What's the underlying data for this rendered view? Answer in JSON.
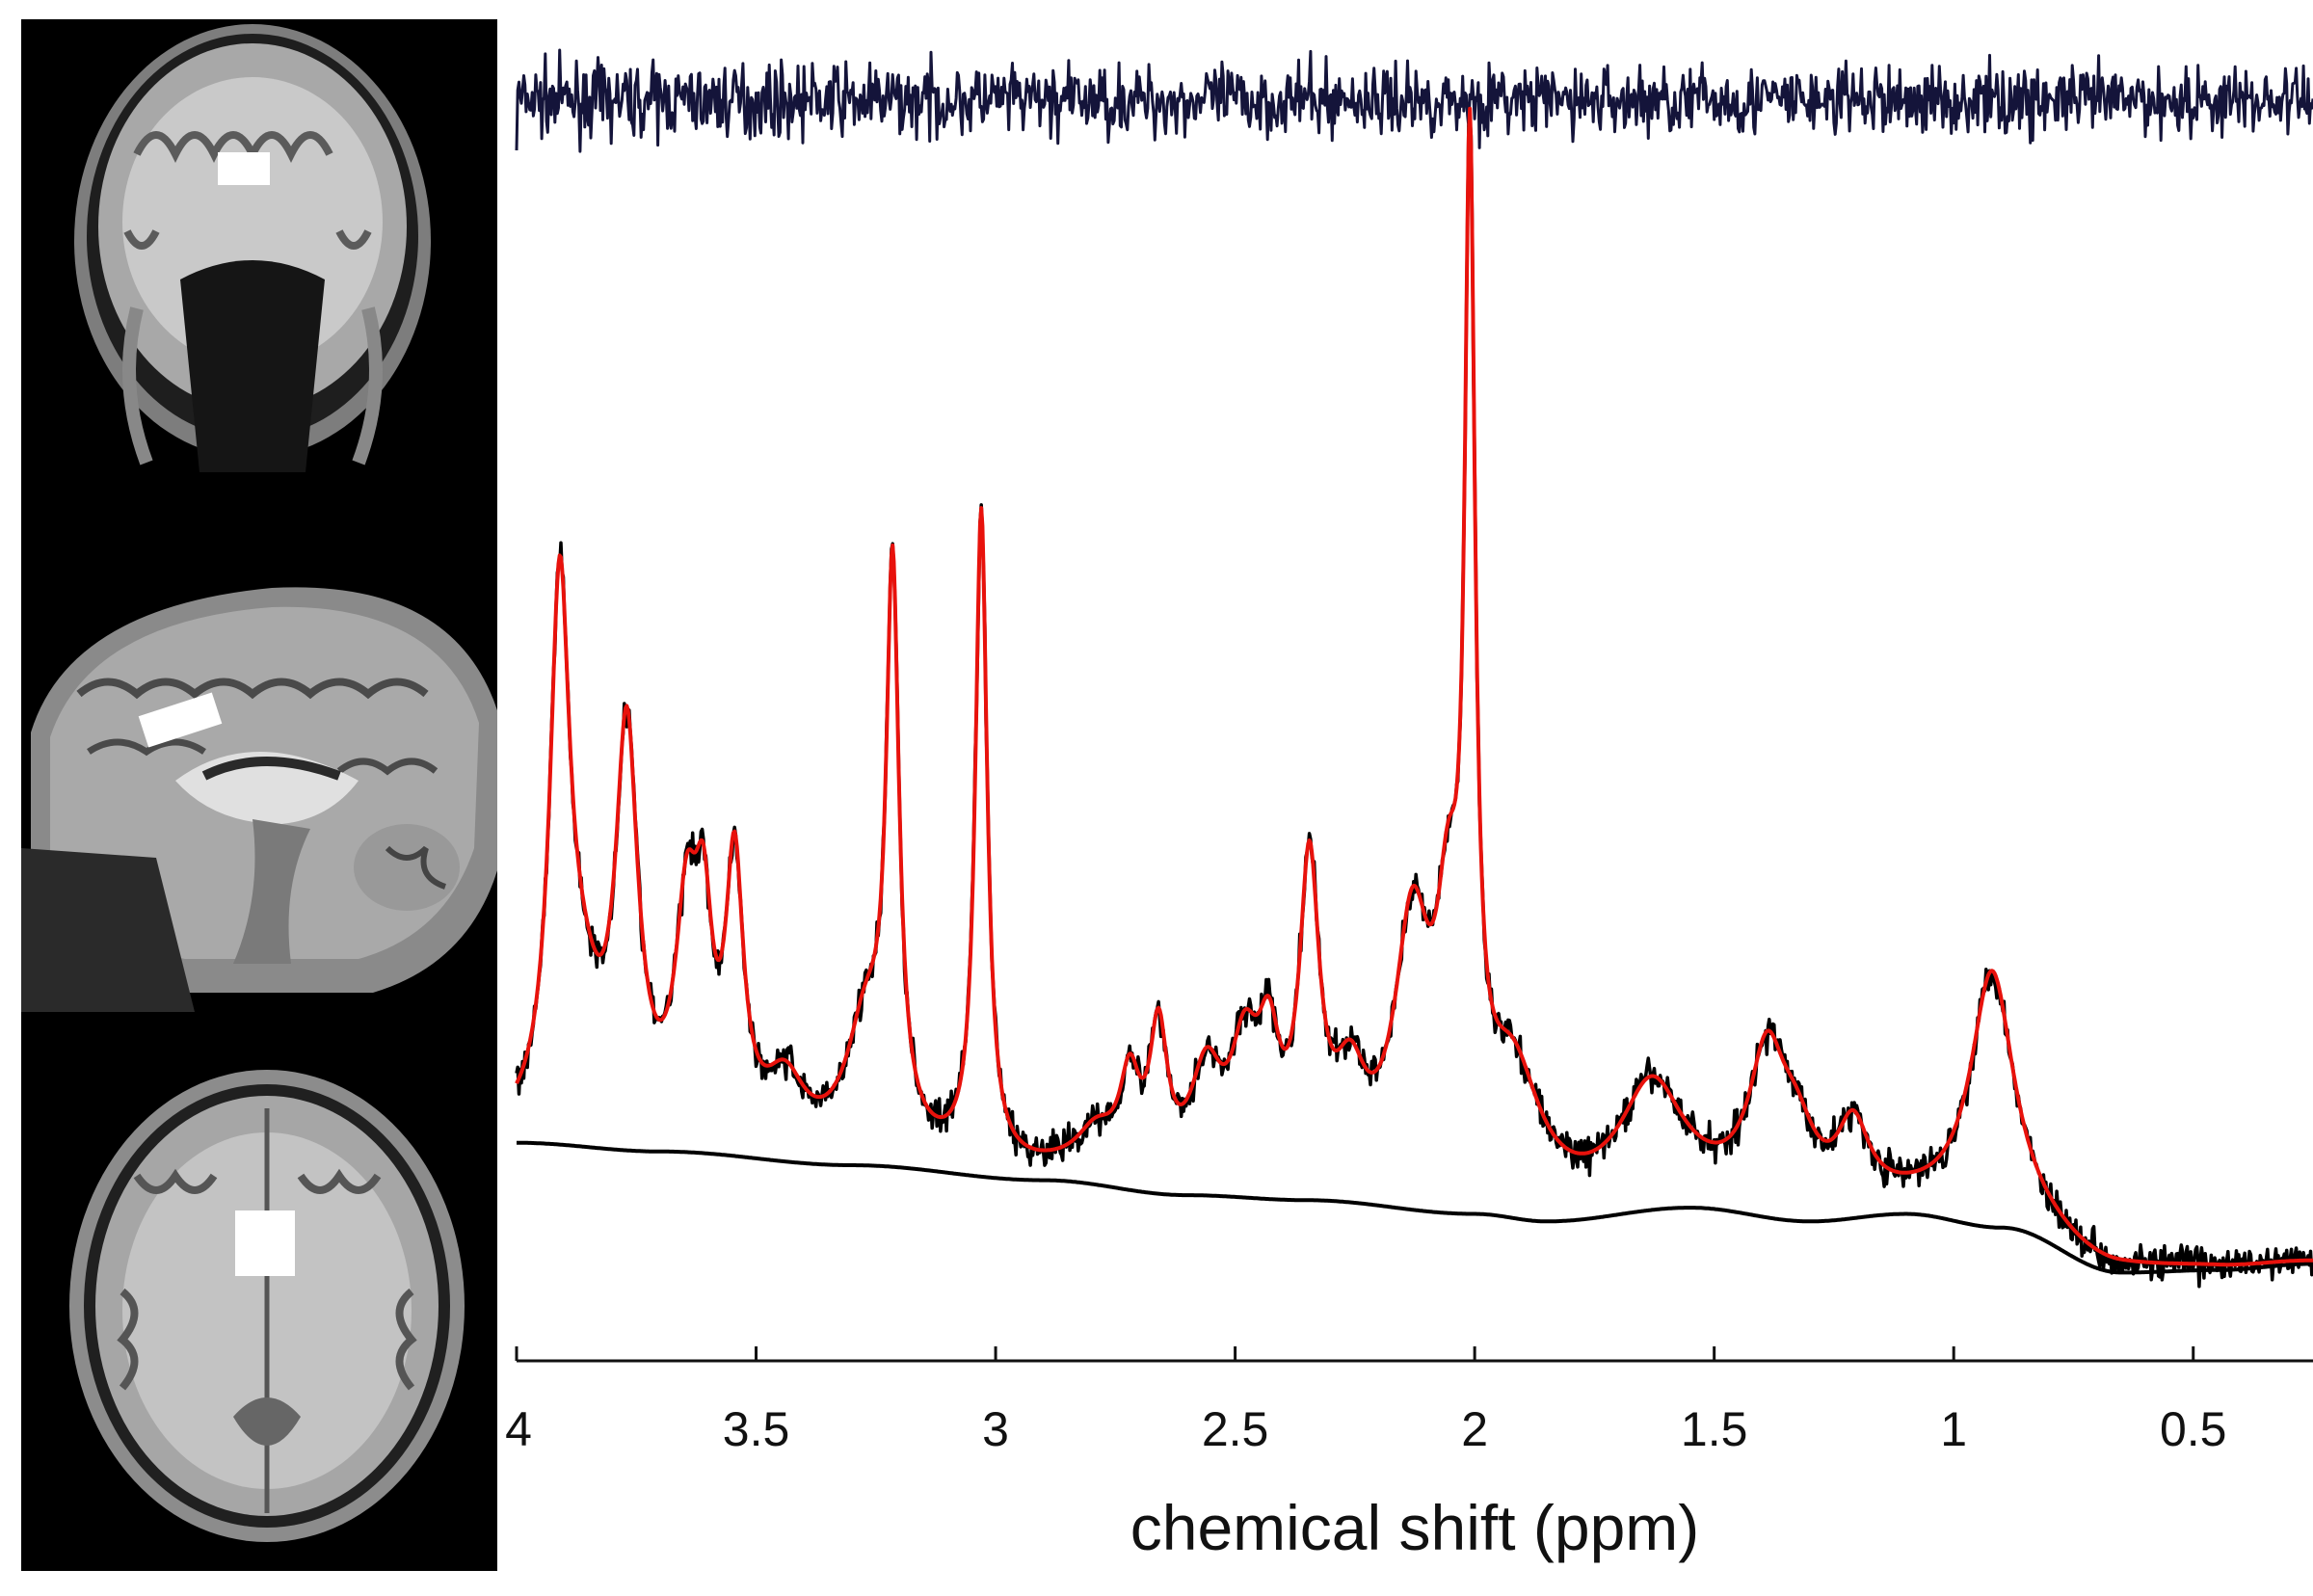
{
  "chart_data": {
    "type": "line",
    "xlabel": "chemical shift (ppm)",
    "xlim": [
      4.0,
      0.25
    ],
    "x_reversed": true,
    "ylim": [
      -0.05,
      1.0
    ],
    "grid": false,
    "ticks": [
      {
        "value": 4,
        "label": "4"
      },
      {
        "value": 3.5,
        "label": "3.5"
      },
      {
        "value": 3,
        "label": "3"
      },
      {
        "value": 2.5,
        "label": "2.5"
      },
      {
        "value": 2,
        "label": "2"
      },
      {
        "value": 1.5,
        "label": "1.5"
      },
      {
        "value": 1,
        "label": "1"
      },
      {
        "value": 0.5,
        "label": "0.5"
      }
    ],
    "series": [
      {
        "role": "residual",
        "color": "#14143a",
        "offset": 0.935,
        "noise_amplitude": 0.028
      },
      {
        "role": "measured",
        "color": "#000000",
        "noise_amplitude": 0.014,
        "follows": "fit"
      },
      {
        "role": "fit",
        "color": "#e8120c",
        "peaks": [
          {
            "ppm": 3.91,
            "height": 0.41,
            "width": 0.025
          },
          {
            "ppm": 3.865,
            "height": 0.08,
            "width": 0.05
          },
          {
            "ppm": 3.77,
            "height": 0.31,
            "width": 0.028
          },
          {
            "ppm": 3.645,
            "height": 0.16,
            "width": 0.028
          },
          {
            "ppm": 3.61,
            "height": 0.14,
            "width": 0.022
          },
          {
            "ppm": 3.545,
            "height": 0.21,
            "width": 0.022
          },
          {
            "ppm": 3.44,
            "height": 0.05,
            "width": 0.05
          },
          {
            "ppm": 3.27,
            "height": 0.1,
            "width": 0.05
          },
          {
            "ppm": 3.215,
            "height": 0.44,
            "width": 0.016
          },
          {
            "ppm": 3.03,
            "height": 0.52,
            "width": 0.015
          },
          {
            "ppm": 2.79,
            "height": 0.03,
            "width": 0.05
          },
          {
            "ppm": 2.72,
            "height": 0.07,
            "width": 0.025
          },
          {
            "ppm": 2.66,
            "height": 0.11,
            "width": 0.022
          },
          {
            "ppm": 2.56,
            "height": 0.08,
            "width": 0.04
          },
          {
            "ppm": 2.48,
            "height": 0.09,
            "width": 0.035
          },
          {
            "ppm": 2.43,
            "height": 0.09,
            "width": 0.028
          },
          {
            "ppm": 2.345,
            "height": 0.24,
            "width": 0.025
          },
          {
            "ppm": 2.26,
            "height": 0.07,
            "width": 0.04
          },
          {
            "ppm": 2.13,
            "height": 0.2,
            "width": 0.045
          },
          {
            "ppm": 2.055,
            "height": 0.17,
            "width": 0.03
          },
          {
            "ppm": 2.01,
            "height": 0.76,
            "width": 0.013
          },
          {
            "ppm": 1.92,
            "height": 0.1,
            "width": 0.07
          },
          {
            "ppm": 1.63,
            "height": 0.09,
            "width": 0.08
          },
          {
            "ppm": 1.39,
            "height": 0.11,
            "width": 0.045
          },
          {
            "ppm": 1.33,
            "height": 0.05,
            "width": 0.05
          },
          {
            "ppm": 1.21,
            "height": 0.06,
            "width": 0.04
          },
          {
            "ppm": 0.92,
            "height": 0.2,
            "width": 0.055
          }
        ]
      },
      {
        "role": "baseline",
        "color": "#000000",
        "points": [
          [
            4.0,
            0.1
          ],
          [
            3.7,
            0.093
          ],
          [
            3.3,
            0.082
          ],
          [
            2.9,
            0.07
          ],
          [
            2.6,
            0.058
          ],
          [
            2.35,
            0.054
          ],
          [
            2.0,
            0.043
          ],
          [
            1.85,
            0.037
          ],
          [
            1.55,
            0.048
          ],
          [
            1.3,
            0.037
          ],
          [
            1.1,
            0.043
          ],
          [
            0.9,
            0.032
          ],
          [
            0.65,
            -0.004
          ],
          [
            0.45,
            -0.002
          ],
          [
            0.25,
            0.003
          ]
        ]
      }
    ]
  },
  "images": [
    {
      "name": "coronal-mri",
      "view": "coronal"
    },
    {
      "name": "sagittal-mri",
      "view": "sagittal"
    },
    {
      "name": "axial-mri",
      "view": "axial"
    }
  ]
}
